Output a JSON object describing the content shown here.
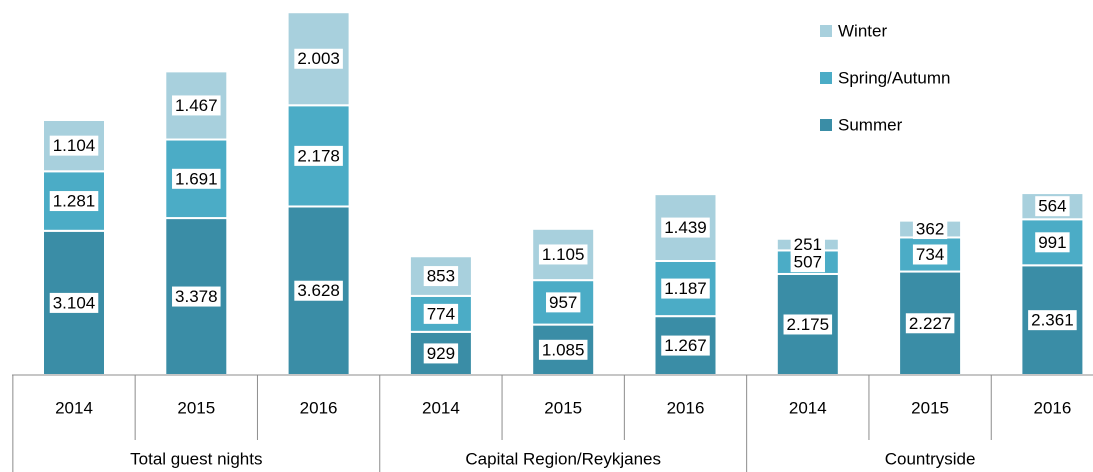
{
  "chart_data": {
    "type": "stacked_bar",
    "categories": [
      "2014",
      "2015",
      "2016",
      "2014",
      "2015",
      "2016",
      "2014",
      "2015",
      "2016"
    ],
    "groups": [
      "Total guest nights",
      "Capital Region/Reykjanes",
      "Countryside"
    ],
    "series": [
      {
        "name": "Summer",
        "color": "#3a8da6",
        "values": [
          3104,
          3378,
          3628,
          929,
          1085,
          1267,
          2175,
          2227,
          2361
        ],
        "value_labels": [
          "3.104",
          "3.378",
          "3.628",
          "929",
          "1.085",
          "1.267",
          "2.175",
          "2.227",
          "2.361"
        ]
      },
      {
        "name": "Spring/Autumn",
        "color": "#4bacc6",
        "values": [
          1281,
          1691,
          2178,
          774,
          957,
          1187,
          507,
          734,
          991
        ],
        "value_labels": [
          "1.281",
          "1.691",
          "2.178",
          "774",
          "957",
          "1.187",
          "507",
          "734",
          "991"
        ]
      },
      {
        "name": "Winter",
        "color": "#a8d0dd",
        "values": [
          1104,
          1467,
          2003,
          853,
          1105,
          1439,
          251,
          362,
          564
        ],
        "value_labels": [
          "1.104",
          "1.467",
          "2.003",
          "853",
          "1.105",
          "1.439",
          "251",
          "362",
          "564"
        ]
      }
    ],
    "ylim": [
      0,
      7900
    ],
    "legend": "top-right"
  }
}
